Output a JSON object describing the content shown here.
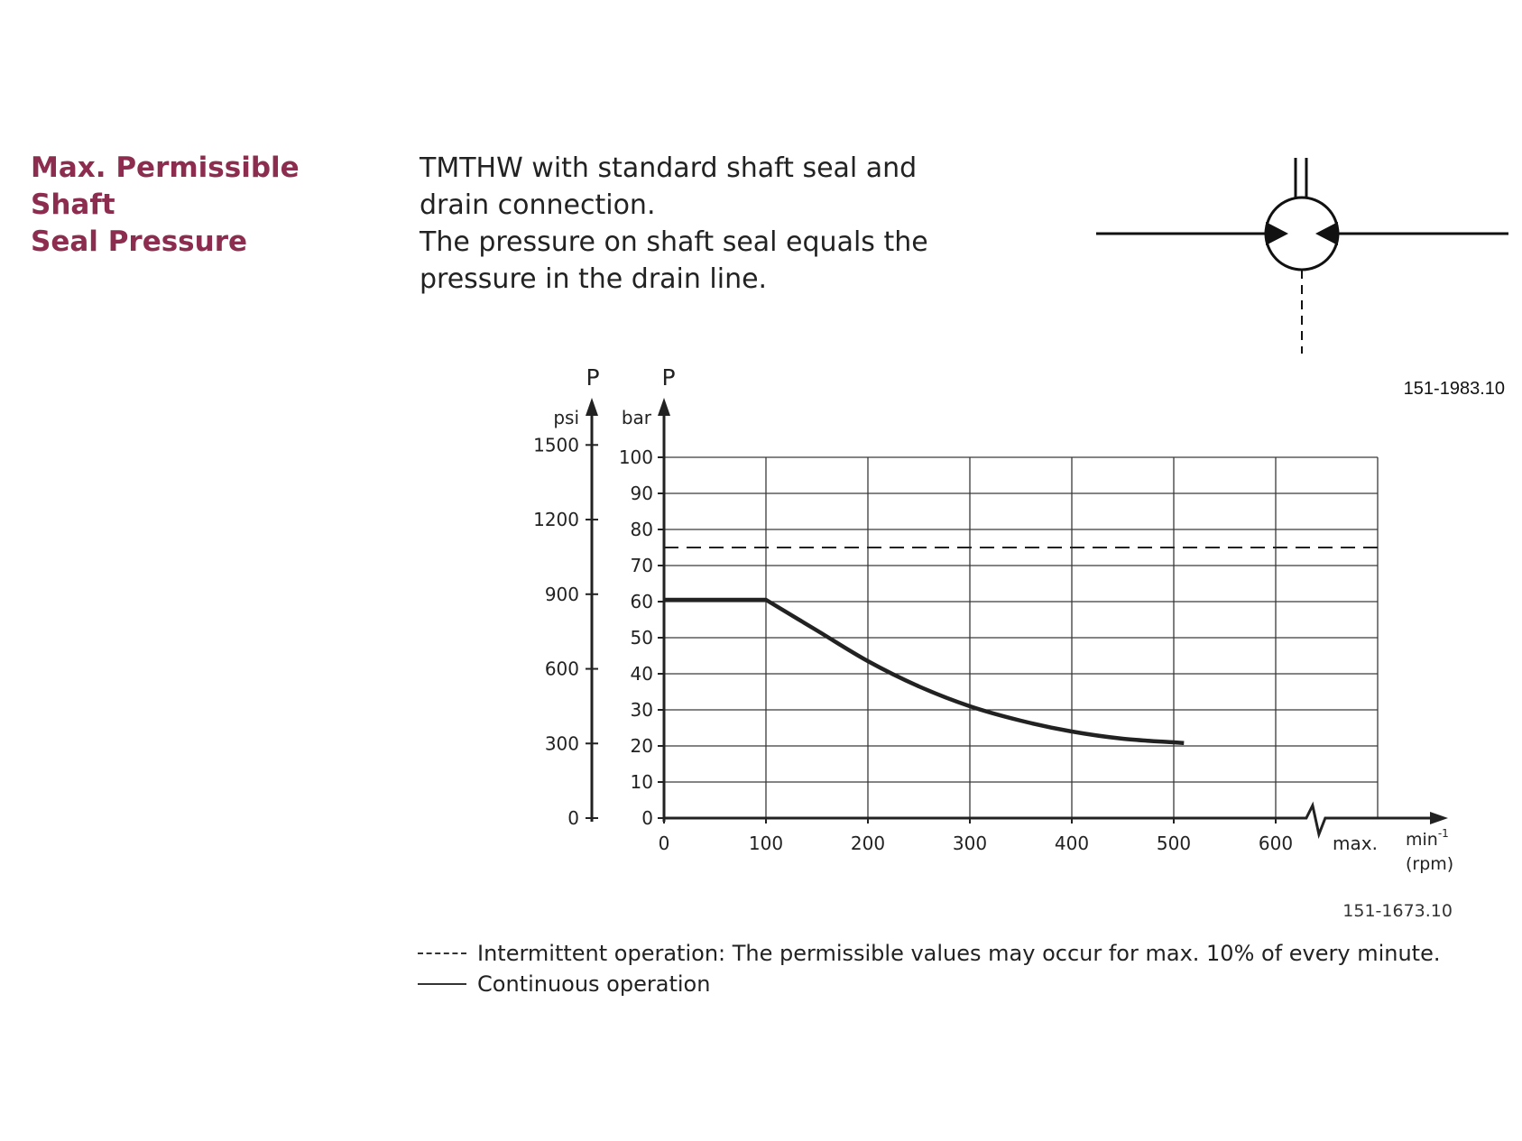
{
  "heading": {
    "line1": "Max. Permissible Shaft",
    "line2": "Seal Pressure"
  },
  "intro": {
    "line1": "TMTHW with standard shaft seal and",
    "line2": "drain connection.",
    "line3": "The pressure on shaft seal equals the",
    "line4": "pressure in the drain line."
  },
  "symbol": {
    "code": "151-1983.10"
  },
  "legend": {
    "intermittent": "Intermittent operation: The permissible values may occur for max. 10% of every minute.",
    "continuous": "Continuous operation"
  },
  "colors": {
    "heading": "#8c2c4e",
    "line": "#222222",
    "grid": "#3a3a3a"
  },
  "chart_data": {
    "type": "line",
    "code": "151-1673.10",
    "y_left": {
      "symbol": "P",
      "unit": "psi",
      "ticks": [
        "0",
        "300",
        "600",
        "900",
        "1200",
        "1500"
      ],
      "values": [
        0,
        300,
        600,
        900,
        1200,
        1500
      ]
    },
    "y_right": {
      "symbol": "P",
      "unit": "bar",
      "ticks": [
        "0",
        "10",
        "20",
        "30",
        "40",
        "50",
        "60",
        "70",
        "80",
        "90",
        "100"
      ],
      "ylim": [
        0,
        100
      ]
    },
    "x": {
      "ticks": [
        "0",
        "100",
        "200",
        "300",
        "400",
        "500",
        "600"
      ],
      "max_label": "max.",
      "unit_base": "min",
      "unit_exp": "-1",
      "unit_alt": "(rpm)",
      "xlim": [
        0,
        700
      ],
      "axis_break": true
    },
    "grid": true,
    "series": [
      {
        "style": "solid",
        "x": [
          0,
          100,
          150,
          200,
          250,
          300,
          350,
          400,
          450,
          500,
          510
        ],
        "y": [
          60.5,
          60.5,
          52,
          43.5,
          36.5,
          31,
          27,
          24,
          22,
          21,
          20.8
        ]
      },
      {
        "style": "dashed",
        "x": [
          0,
          700
        ],
        "y": [
          75,
          75
        ]
      }
    ]
  }
}
